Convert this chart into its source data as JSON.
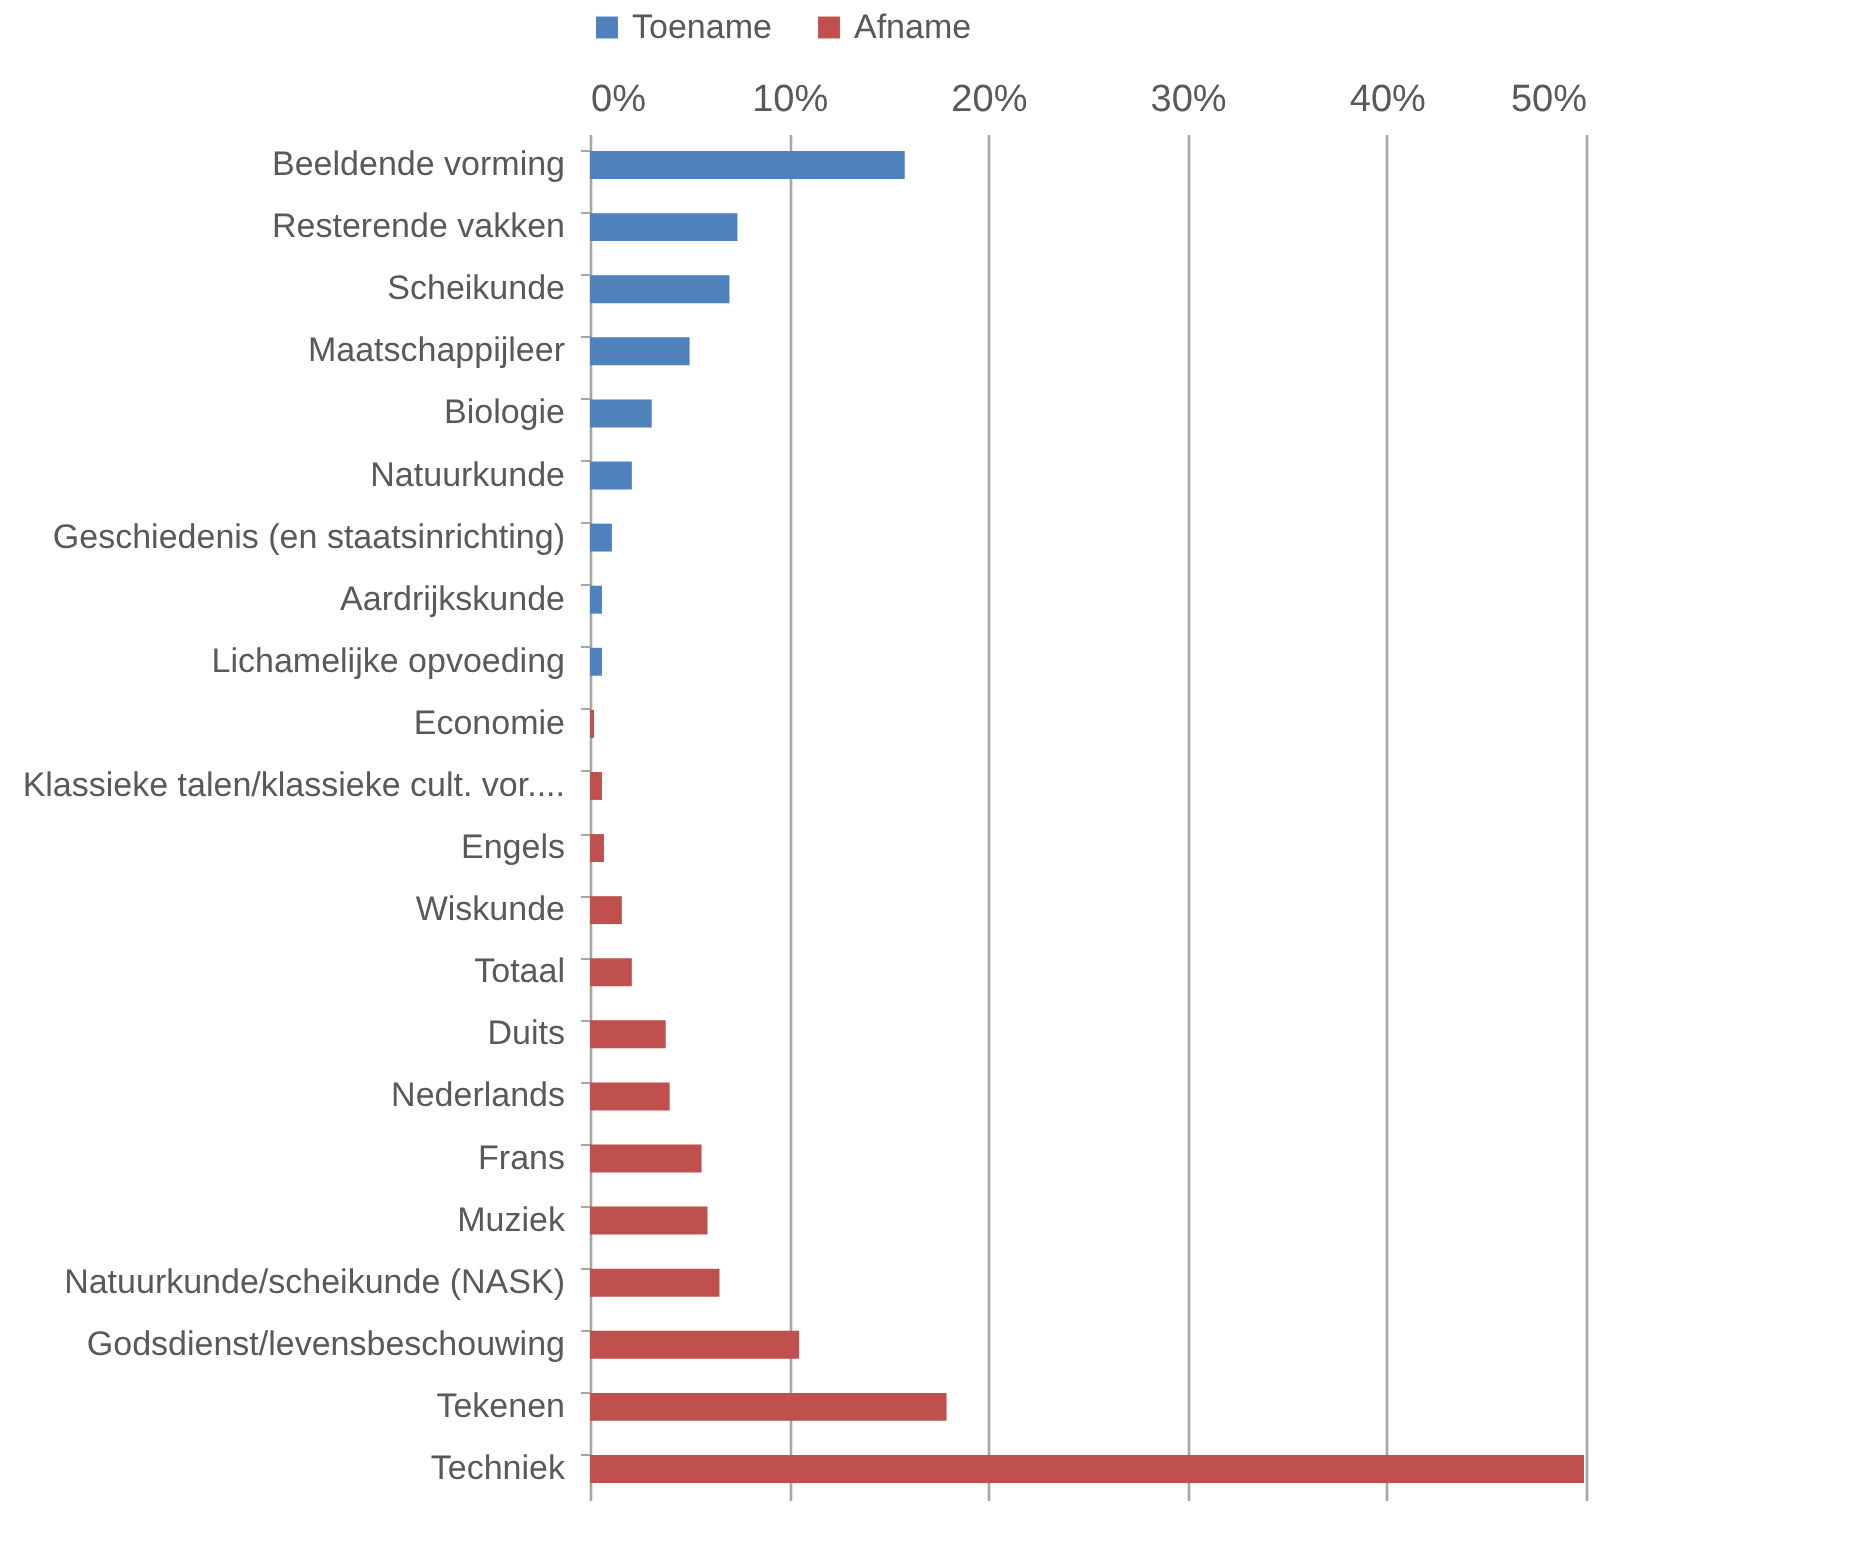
{
  "chart_data": {
    "type": "bar",
    "orientation": "horizontal",
    "categories": [
      "Beeldende vorming",
      "Resterende vakken",
      "Scheikunde",
      "Maatschappijleer",
      "Biologie",
      "Natuurkunde",
      "Geschiedenis (en staatsinrichting)",
      "Aardrijkskunde",
      "Lichamelijke opvoeding",
      "Economie",
      "Klassieke talen/klassieke cult. vor....",
      "Engels",
      "Wiskunde",
      "Totaal",
      "Duits",
      "Nederlands",
      "Frans",
      "Muziek",
      "Natuurkunde/scheikunde (NASK)",
      "Godsdienst/levensbeschouwing",
      "Tekenen",
      "Techniek"
    ],
    "series": [
      {
        "name": "Toename",
        "color": "#4f81bd",
        "values": [
          15.8,
          7.4,
          7.0,
          5.0,
          3.1,
          2.1,
          1.1,
          0.6,
          0.6,
          null,
          null,
          null,
          null,
          null,
          null,
          null,
          null,
          null,
          null,
          null,
          null,
          null
        ]
      },
      {
        "name": "Afname",
        "color": "#c0504d",
        "values": [
          null,
          null,
          null,
          null,
          null,
          null,
          null,
          null,
          null,
          0.2,
          0.6,
          0.7,
          1.6,
          2.1,
          3.8,
          4.0,
          5.6,
          5.9,
          6.5,
          10.5,
          17.9,
          49.9
        ]
      }
    ],
    "xlim": [
      0,
      50
    ],
    "xticks": [
      {
        "value": 0,
        "label": "0%"
      },
      {
        "value": 10,
        "label": "10%"
      },
      {
        "value": 20,
        "label": "20%"
      },
      {
        "value": 30,
        "label": "30%"
      },
      {
        "value": 40,
        "label": "40%"
      },
      {
        "value": 50,
        "label": "50%"
      }
    ],
    "grid": "x",
    "legend": "top"
  }
}
